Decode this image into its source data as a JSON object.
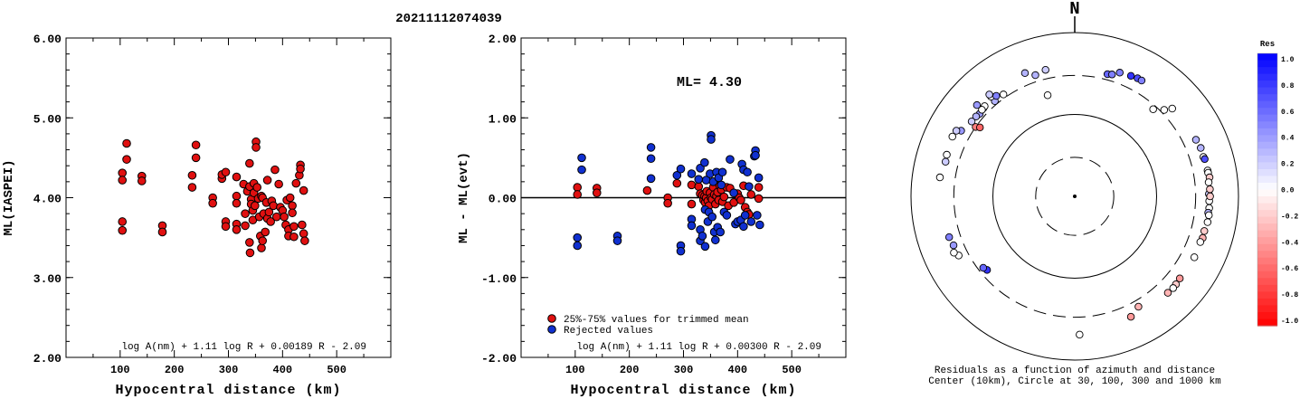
{
  "header": {
    "event_id": "20211112074039"
  },
  "chart_data": [
    {
      "type": "scatter",
      "title": "",
      "xlabel": "Hypocentral distance (km)",
      "ylabel": "ML(IASPEI)",
      "xlim": [
        0,
        600
      ],
      "ylim": [
        2.0,
        6.0
      ],
      "xticks": [
        "100",
        "200",
        "300",
        "400",
        "500"
      ],
      "yticks": [
        "2.00",
        "3.00",
        "4.00",
        "5.00",
        "6.00"
      ],
      "formula": "log A(nm) + 1.11 log R + 0.00189 R - 2.09",
      "series": [
        {
          "color": "#e01010",
          "points": [
            [
              104,
              4.31
            ],
            [
              104,
              4.22
            ],
            [
              104,
              3.7
            ],
            [
              104,
              3.59
            ],
            [
              112,
              4.68
            ],
            [
              112,
              4.48
            ],
            [
              140,
              4.27
            ],
            [
              140,
              4.21
            ],
            [
              178,
              3.65
            ],
            [
              178,
              3.57
            ],
            [
              233,
              4.28
            ],
            [
              233,
              4.13
            ],
            [
              240,
              4.66
            ],
            [
              240,
              4.5
            ],
            [
              271,
              4.0
            ],
            [
              271,
              3.93
            ],
            [
              288,
              4.24
            ],
            [
              288,
              4.29
            ],
            [
              295,
              4.32
            ],
            [
              295,
              3.7
            ],
            [
              295,
              3.64
            ],
            [
              315,
              4.26
            ],
            [
              315,
              4.02
            ],
            [
              315,
              3.93
            ],
            [
              315,
              3.67
            ],
            [
              315,
              3.6
            ],
            [
              328,
              4.17
            ],
            [
              331,
              3.8
            ],
            [
              331,
              3.65
            ],
            [
              335,
              4.08
            ],
            [
              339,
              4.43
            ],
            [
              339,
              4.14
            ],
            [
              339,
              3.44
            ],
            [
              340,
              3.31
            ],
            [
              342,
              3.98
            ],
            [
              342,
              3.92
            ],
            [
              345,
              3.84
            ],
            [
              345,
              3.72
            ],
            [
              347,
              4.18
            ],
            [
              347,
              4.06
            ],
            [
              349,
              3.9
            ],
            [
              351,
              4.7
            ],
            [
              351,
              4.63
            ],
            [
              353,
              4.13
            ],
            [
              355,
              3.99
            ],
            [
              357,
              3.76
            ],
            [
              359,
              3.52
            ],
            [
              361,
              4.02
            ],
            [
              361,
              3.37
            ],
            [
              363,
              4.0
            ],
            [
              363,
              3.46
            ],
            [
              365,
              3.8
            ],
            [
              368,
              3.57
            ],
            [
              370,
              3.94
            ],
            [
              372,
              4.22
            ],
            [
              372,
              3.74
            ],
            [
              375,
              3.82
            ],
            [
              378,
              3.7
            ],
            [
              380,
              3.96
            ],
            [
              383,
              3.9
            ],
            [
              386,
              4.35
            ],
            [
              389,
              3.76
            ],
            [
              393,
              4.17
            ],
            [
              396,
              3.88
            ],
            [
              400,
              3.84
            ],
            [
              403,
              3.76
            ],
            [
              406,
              3.66
            ],
            [
              408,
              3.97
            ],
            [
              411,
              3.6
            ],
            [
              411,
              3.52
            ],
            [
              414,
              4.0
            ],
            [
              418,
              3.9
            ],
            [
              418,
              3.81
            ],
            [
              421,
              3.64
            ],
            [
              421,
              3.51
            ],
            [
              425,
              4.18
            ],
            [
              431,
              4.28
            ],
            [
              433,
              4.41
            ],
            [
              433,
              4.36
            ],
            [
              436,
              3.66
            ],
            [
              439,
              4.09
            ],
            [
              439,
              3.55
            ],
            [
              441,
              3.46
            ]
          ]
        }
      ]
    },
    {
      "type": "scatter",
      "title": "",
      "xlabel": "Hypocentral distance (km)",
      "ylabel": "ML - ML(evt)",
      "xlim": [
        0,
        600
      ],
      "ylim": [
        -2.0,
        2.0
      ],
      "xticks": [
        "100",
        "200",
        "300",
        "400",
        "500"
      ],
      "yticks": [
        "-2.00",
        "-1.00",
        "0.00",
        "1.00",
        "2.00"
      ],
      "reference_line": 0,
      "annotation": "ML= 4.30",
      "formula": "log A(nm) + 1.11 log R + 0.00300 R - 2.09",
      "legend": [
        {
          "label": "25%-75% values for trimmed mean",
          "color": "#e01010"
        },
        {
          "label": "Rejected values",
          "color": "#1030d0"
        }
      ],
      "series": [
        {
          "name": "25%-75% values for trimmed mean",
          "color": "#e01010",
          "points": [
            [
              104,
              0.13
            ],
            [
              104,
              0.04
            ],
            [
              140,
              0.12
            ],
            [
              140,
              0.06
            ],
            [
              233,
              0.09
            ],
            [
              271,
              0.0
            ],
            [
              271,
              -0.07
            ],
            [
              288,
              0.18
            ],
            [
              315,
              0.16
            ],
            [
              315,
              -0.08
            ],
            [
              328,
              0.14
            ],
            [
              331,
              0.05
            ],
            [
              335,
              0.03
            ],
            [
              337,
              -0.03
            ],
            [
              339,
              0.02
            ],
            [
              340,
              -0.06
            ],
            [
              342,
              0.0
            ],
            [
              343,
              0.08
            ],
            [
              345,
              -0.04
            ],
            [
              347,
              -0.1
            ],
            [
              349,
              0.06
            ],
            [
              351,
              0.0
            ],
            [
              353,
              -0.02
            ],
            [
              355,
              0.13
            ],
            [
              357,
              0.04
            ],
            [
              359,
              -0.08
            ],
            [
              361,
              0.02
            ],
            [
              363,
              0.07
            ],
            [
              365,
              -0.03
            ],
            [
              367,
              0.15
            ],
            [
              370,
              0.1
            ],
            [
              372,
              -0.05
            ],
            [
              375,
              0.01
            ],
            [
              380,
              0.13
            ],
            [
              383,
              -0.1
            ],
            [
              386,
              0.12
            ],
            [
              393,
              -0.06
            ],
            [
              400,
              0.05
            ],
            [
              403,
              0.0
            ],
            [
              406,
              -0.03
            ],
            [
              411,
              0.15
            ],
            [
              414,
              -0.12
            ],
            [
              418,
              -0.18
            ],
            [
              421,
              -0.21
            ],
            [
              425,
              0.04
            ],
            [
              439,
              0.13
            ],
            [
              439,
              -0.01
            ]
          ]
        },
        {
          "name": "Rejected values",
          "color": "#1030d0",
          "points": [
            [
              104,
              -0.5
            ],
            [
              104,
              -0.6
            ],
            [
              112,
              0.5
            ],
            [
              112,
              0.35
            ],
            [
              178,
              -0.48
            ],
            [
              178,
              -0.54
            ],
            [
              240,
              0.63
            ],
            [
              240,
              0.49
            ],
            [
              240,
              0.24
            ],
            [
              288,
              0.28
            ],
            [
              295,
              0.36
            ],
            [
              295,
              -0.6
            ],
            [
              295,
              -0.67
            ],
            [
              315,
              0.3
            ],
            [
              315,
              -0.27
            ],
            [
              315,
              -0.35
            ],
            [
              328,
              0.23
            ],
            [
              331,
              0.37
            ],
            [
              331,
              -0.4
            ],
            [
              331,
              -0.54
            ],
            [
              335,
              -0.48
            ],
            [
              339,
              0.44
            ],
            [
              340,
              -0.15
            ],
            [
              340,
              -0.61
            ],
            [
              342,
              0.22
            ],
            [
              345,
              -0.3
            ],
            [
              347,
              -0.18
            ],
            [
              349,
              0.3
            ],
            [
              351,
              0.78
            ],
            [
              351,
              0.73
            ],
            [
              353,
              -0.24
            ],
            [
              355,
              0.2
            ],
            [
              357,
              -0.43
            ],
            [
              359,
              -0.53
            ],
            [
              361,
              0.32
            ],
            [
              363,
              -0.37
            ],
            [
              365,
              0.25
            ],
            [
              368,
              -0.43
            ],
            [
              370,
              0.16
            ],
            [
              372,
              0.32
            ],
            [
              375,
              -0.18
            ],
            [
              380,
              -0.22
            ],
            [
              386,
              0.48
            ],
            [
              393,
              0.06
            ],
            [
              396,
              -0.33
            ],
            [
              400,
              -0.3
            ],
            [
              406,
              -0.28
            ],
            [
              408,
              0.42
            ],
            [
              411,
              0.35
            ],
            [
              411,
              -0.36
            ],
            [
              414,
              -0.22
            ],
            [
              418,
              0.32
            ],
            [
              421,
              0.14
            ],
            [
              425,
              -0.3
            ],
            [
              431,
              0.52
            ],
            [
              433,
              0.59
            ],
            [
              433,
              0.53
            ],
            [
              436,
              -0.22
            ],
            [
              439,
              0.25
            ],
            [
              441,
              -0.34
            ]
          ]
        }
      ]
    },
    {
      "type": "scatter",
      "subtype": "polar",
      "north_label": "N",
      "colorbar_title": "Res",
      "colorbar_ticks": [
        "1.0",
        "0.8",
        "0.6",
        "0.4",
        "0.2",
        "0.0",
        "-0.2",
        "-0.4",
        "-0.6",
        "-0.8",
        "-1.0"
      ],
      "caption_line1": "Residuals as a function of azimuth and distance",
      "caption_line2": "Center (10km), Circle at 30, 100, 300 and 1000 km",
      "rings_km": [
        30,
        100,
        300,
        1000
      ],
      "ring_styles": [
        "dashed",
        "solid",
        "dashed",
        "solid"
      ],
      "points_az_dist_res": [
        [
          15,
          350,
          0.6
        ],
        [
          17,
          360,
          0.5
        ],
        [
          20,
          405,
          0.5
        ],
        [
          25,
          420,
          0.8
        ],
        [
          28,
          430,
          0.7
        ],
        [
          30,
          430,
          0.5
        ],
        [
          -18,
          360,
          0.3
        ],
        [
          -13,
          385,
          0.2
        ],
        [
          -22,
          420,
          0.3
        ],
        [
          -35,
          330,
          0.0
        ],
        [
          -40,
          330,
          0.3
        ],
        [
          -46,
          355,
          0.5
        ],
        [
          -49,
          345,
          0.4
        ],
        [
          -51,
          355,
          0.3
        ],
        [
          -54,
          360,
          0.2
        ],
        [
          -60,
          400,
          0.4
        ],
        [
          -55,
          300,
          -0.5
        ],
        [
          -40,
          390,
          0.0
        ],
        [
          -75,
          430,
          0.2
        ],
        [
          -72,
          440,
          0.0
        ],
        [
          -15,
          190,
          0.0
        ],
        [
          -45,
          360,
          0.0
        ],
        [
          42,
          270,
          0.0
        ],
        [
          46,
          330,
          0.0
        ],
        [
          48,
          400,
          0.0
        ],
        [
          65,
          430,
          0.3
        ],
        [
          73,
          440,
          0.0
        ],
        [
          69,
          445,
          0.3
        ],
        [
          74,
          448,
          0.7
        ],
        [
          79,
          450,
          0.0
        ],
        [
          80,
          451,
          0.0
        ],
        [
          82,
          460,
          -0.2
        ],
        [
          84,
          441,
          0.0
        ],
        [
          89,
          435,
          0.2
        ],
        [
          92,
          440,
          0.0
        ],
        [
          87,
          450,
          -0.2
        ],
        [
          90,
          450,
          -0.2
        ],
        [
          95,
          445,
          0.0
        ],
        [
          97,
          439,
          0.3
        ],
        [
          98,
          451,
          0.0
        ],
        [
          101,
          450,
          0.0
        ],
        [
          105,
          435,
          -0.2
        ],
        [
          108,
          440,
          -0.3
        ],
        [
          110,
          429,
          0.0
        ],
        [
          117,
          436,
          0.0
        ],
        [
          128,
          425,
          -0.4
        ],
        [
          131,
          434,
          -0.2
        ],
        [
          133,
          440,
          0.0
        ],
        [
          136,
          434,
          -0.3
        ],
        [
          150,
          360,
          -0.3
        ],
        [
          155,
          420,
          -0.4
        ],
        [
          178,
          490,
          0.0
        ],
        [
          230,
          250,
          0.8
        ],
        [
          232,
          262,
          0.6
        ],
        [
          243,
          390,
          0.0
        ],
        [
          245,
          425,
          0.0
        ],
        [
          248,
          395,
          0.4
        ],
        [
          252,
          410,
          0.5
        ],
        [
          278,
          460,
          0.0
        ],
        [
          296,
          460,
          0.0
        ],
        [
          299,
          450,
          0.2
        ],
        [
          306,
          270,
          -0.6
        ],
        [
          313,
          430,
          0.4
        ],
        [
          320,
          420,
          0.2
        ],
        [
          313,
          355,
          0.0
        ],
        [
          322,
          360,
          0.5
        ]
      ]
    }
  ]
}
